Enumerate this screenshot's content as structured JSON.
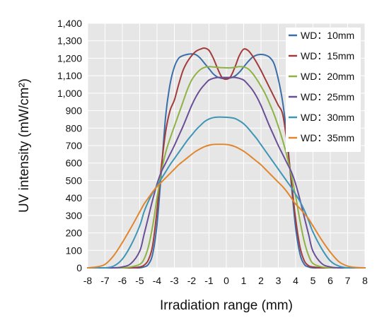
{
  "chart_data": {
    "type": "line",
    "title": "",
    "xlabel": "Irradiation range (mm)",
    "ylabel": "UV intensity (mW/cm²)",
    "xlim": [
      -8,
      8
    ],
    "ylim": [
      0,
      1400
    ],
    "x_ticks": [
      -8,
      -7,
      -6,
      -5,
      -4,
      -3,
      -2,
      -1,
      0,
      1,
      2,
      3,
      4,
      5,
      6,
      7,
      8
    ],
    "y_ticks": [
      0,
      100,
      200,
      300,
      400,
      500,
      600,
      700,
      800,
      900,
      1000,
      1100,
      1200,
      1300,
      1400
    ],
    "y_tick_labels": [
      "0",
      "100",
      "200",
      "300",
      "400",
      "500",
      "600",
      "700",
      "800",
      "900",
      "1,000",
      "1,100",
      "1,200",
      "1,300",
      "1,400"
    ],
    "grid": true,
    "legend_position": "top-right",
    "x": [
      -8,
      -7.5,
      -7,
      -6.5,
      -6,
      -5.5,
      -5,
      -4.75,
      -4.5,
      -4.25,
      -4,
      -3.75,
      -3.5,
      -3.25,
      -3,
      -2.75,
      -2.5,
      -2.25,
      -2,
      -1.75,
      -1.5,
      -1.25,
      -1,
      -0.75,
      -0.5,
      -0.25,
      0,
      0.25,
      0.5,
      0.75,
      1,
      1.25,
      1.5,
      1.75,
      2,
      2.25,
      2.5,
      2.75,
      3,
      3.25,
      3.5,
      3.75,
      4,
      4.25,
      4.5,
      4.75,
      5,
      5.5,
      6,
      6.5,
      7,
      7.5,
      8
    ],
    "series": [
      {
        "name": "WD：10mm",
        "color": "#3a6ea8",
        "values": [
          0,
          0,
          0,
          0,
          0,
          0,
          0,
          5,
          20,
          80,
          250,
          550,
          870,
          1050,
          1150,
          1200,
          1215,
          1222,
          1225,
          1220,
          1200,
          1170,
          1140,
          1110,
          1092,
          1085,
          1085,
          1088,
          1098,
          1120,
          1150,
          1180,
          1205,
          1218,
          1222,
          1218,
          1205,
          1170,
          1080,
          950,
          750,
          480,
          230,
          80,
          20,
          5,
          0,
          0,
          0,
          0,
          0,
          0,
          0
        ]
      },
      {
        "name": "WD：15mm",
        "color": "#a23b3b",
        "values": [
          0,
          0,
          0,
          0,
          0,
          0,
          5,
          15,
          45,
          130,
          330,
          580,
          780,
          900,
          960,
          1050,
          1130,
          1180,
          1215,
          1240,
          1252,
          1258,
          1245,
          1200,
          1140,
          1090,
          1080,
          1095,
          1150,
          1215,
          1252,
          1245,
          1215,
          1175,
          1130,
          1080,
          1030,
          980,
          930,
          880,
          720,
          500,
          280,
          120,
          40,
          12,
          5,
          0,
          0,
          0,
          0,
          0,
          0
        ]
      },
      {
        "name": "WD：20mm",
        "color": "#8eb243",
        "values": [
          0,
          0,
          0,
          0,
          0,
          5,
          20,
          50,
          120,
          240,
          400,
          550,
          660,
          740,
          810,
          880,
          950,
          1020,
          1075,
          1110,
          1135,
          1148,
          1152,
          1150,
          1148,
          1146,
          1145,
          1145,
          1148,
          1152,
          1150,
          1140,
          1115,
          1080,
          1040,
          995,
          940,
          880,
          810,
          730,
          640,
          530,
          410,
          270,
          150,
          70,
          25,
          5,
          0,
          0,
          0,
          0,
          0
        ]
      },
      {
        "name": "WD：25mm",
        "color": "#6a4e96",
        "values": [
          0,
          0,
          0,
          0,
          5,
          25,
          95,
          190,
          290,
          390,
          480,
          550,
          600,
          650,
          700,
          755,
          810,
          870,
          930,
          980,
          1020,
          1050,
          1075,
          1085,
          1090,
          1090,
          1090,
          1090,
          1090,
          1085,
          1075,
          1050,
          1020,
          980,
          930,
          870,
          810,
          755,
          700,
          650,
          600,
          550,
          480,
          390,
          290,
          190,
          95,
          25,
          5,
          0,
          0,
          0,
          0
        ]
      },
      {
        "name": "WD：30mm",
        "color": "#3f95b5",
        "values": [
          0,
          0,
          0,
          10,
          50,
          130,
          240,
          320,
          380,
          430,
          470,
          510,
          550,
          590,
          625,
          660,
          695,
          730,
          760,
          790,
          815,
          838,
          852,
          860,
          863,
          863,
          862,
          860,
          855,
          842,
          825,
          800,
          770,
          740,
          705,
          670,
          635,
          600,
          565,
          530,
          495,
          460,
          420,
          380,
          330,
          270,
          205,
          110,
          40,
          10,
          0,
          0,
          0
        ]
      },
      {
        "name": "WD：35mm",
        "color": "#e0862e",
        "values": [
          0,
          5,
          20,
          70,
          145,
          230,
          320,
          365,
          400,
          435,
          465,
          490,
          515,
          540,
          565,
          590,
          610,
          630,
          650,
          668,
          682,
          694,
          702,
          706,
          707,
          707,
          706,
          702,
          694,
          682,
          668,
          650,
          630,
          610,
          590,
          565,
          540,
          515,
          490,
          465,
          435,
          400,
          365,
          340,
          310,
          280,
          240,
          160,
          90,
          35,
          10,
          2,
          0
        ]
      }
    ]
  }
}
